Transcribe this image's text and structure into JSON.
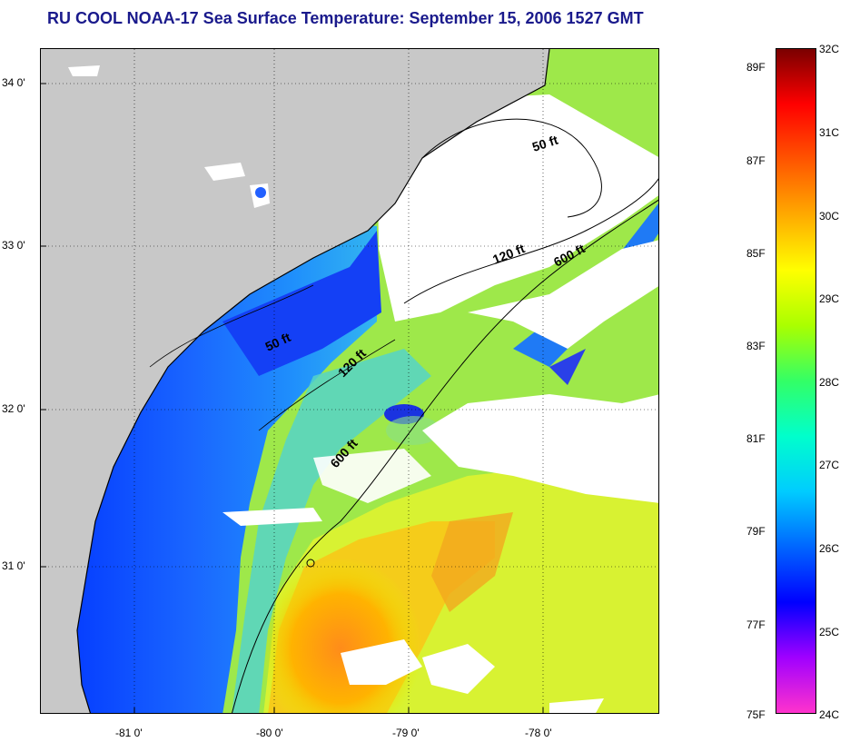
{
  "title": "RU COOL  NOAA-17  Sea Surface Temperature:  September 15, 2006 1527 GMT",
  "map": {
    "lat_labels": [
      "34 0'",
      "33 0'",
      "32 0'",
      "31 0'"
    ],
    "lon_labels": [
      "-81 0'",
      "-80 0'",
      "-79 0'",
      "-78 0'"
    ],
    "contours": [
      {
        "label": "50 ft",
        "id": "50ft-north"
      },
      {
        "label": "120 ft",
        "id": "120ft-north"
      },
      {
        "label": "600 ft",
        "id": "600ft-north"
      },
      {
        "label": "50 ft",
        "id": "50ft-south"
      },
      {
        "label": "120 ft",
        "id": "120ft-south"
      },
      {
        "label": "600 ft",
        "id": "600ft-south"
      }
    ],
    "colors": {
      "land": "#c8c8c8",
      "cloud": "#ffffff",
      "coastline": "#000000"
    }
  },
  "colorbar": {
    "celsius_labels": [
      "32C",
      "31C",
      "30C",
      "29C",
      "28C",
      "27C",
      "26C",
      "25C",
      "24C"
    ],
    "fahrenheit_labels": [
      "89F",
      "87F",
      "85F",
      "83F",
      "81F",
      "79F",
      "77F",
      "75F"
    ],
    "gradient_colors": [
      "#ff33cc",
      "#a000ff",
      "#0000ff",
      "#0066ff",
      "#00ccff",
      "#00ffcc",
      "#33ff66",
      "#aaff00",
      "#ffff00",
      "#ffaa00",
      "#ff5500",
      "#ff0000",
      "#7a0000"
    ]
  }
}
